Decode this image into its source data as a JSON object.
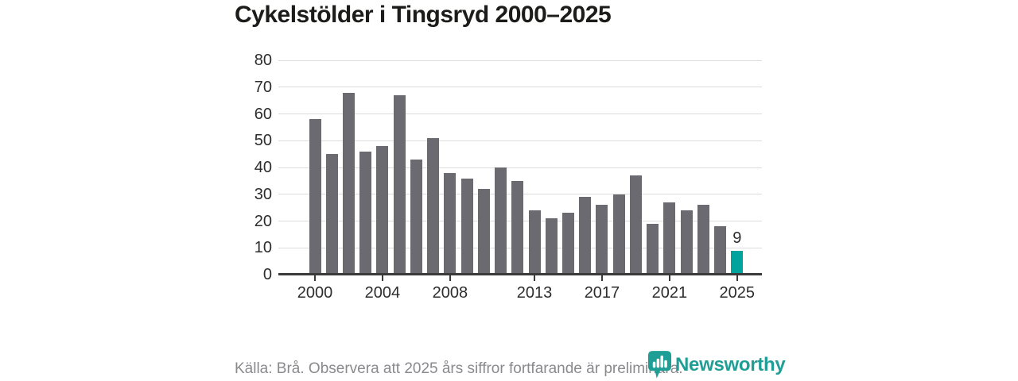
{
  "title": "Cykelstölder i Tingsryd 2000–2025",
  "footer": {
    "source_note": "Källa: Brå. Observera att 2025 års siffror fortfarande är preliminära.",
    "brand": "Newsworthy"
  },
  "colors": {
    "bar": "#6a6a70",
    "highlight": "#00a49c",
    "brand_teal": "#1f9e95",
    "grid": "#dcdcdc",
    "axis": "#3a3a3a",
    "text_dark": "#2d2d2d",
    "muted": "#8a8a8e"
  },
  "chart_data": {
    "type": "bar",
    "title": "Cykelstölder i Tingsryd 2000–2025",
    "x": [
      2000,
      2001,
      2002,
      2003,
      2004,
      2005,
      2006,
      2007,
      2008,
      2009,
      2010,
      2011,
      2012,
      2013,
      2014,
      2015,
      2016,
      2017,
      2018,
      2019,
      2020,
      2021,
      2022,
      2023,
      2024,
      2025
    ],
    "values": [
      58,
      45,
      68,
      46,
      48,
      67,
      43,
      51,
      38,
      36,
      32,
      40,
      35,
      24,
      21,
      23,
      29,
      26,
      30,
      37,
      19,
      27,
      24,
      26,
      18,
      9
    ],
    "highlight_x": 2025,
    "last_value_label": "9",
    "xlabel": "",
    "ylabel": "",
    "ylim": [
      0,
      80
    ],
    "yticks": [
      0,
      10,
      20,
      30,
      40,
      50,
      60,
      70,
      80
    ],
    "xticks": [
      2000,
      2004,
      2008,
      2013,
      2017,
      2021,
      2025
    ],
    "grid": true,
    "legend_position": "none"
  }
}
